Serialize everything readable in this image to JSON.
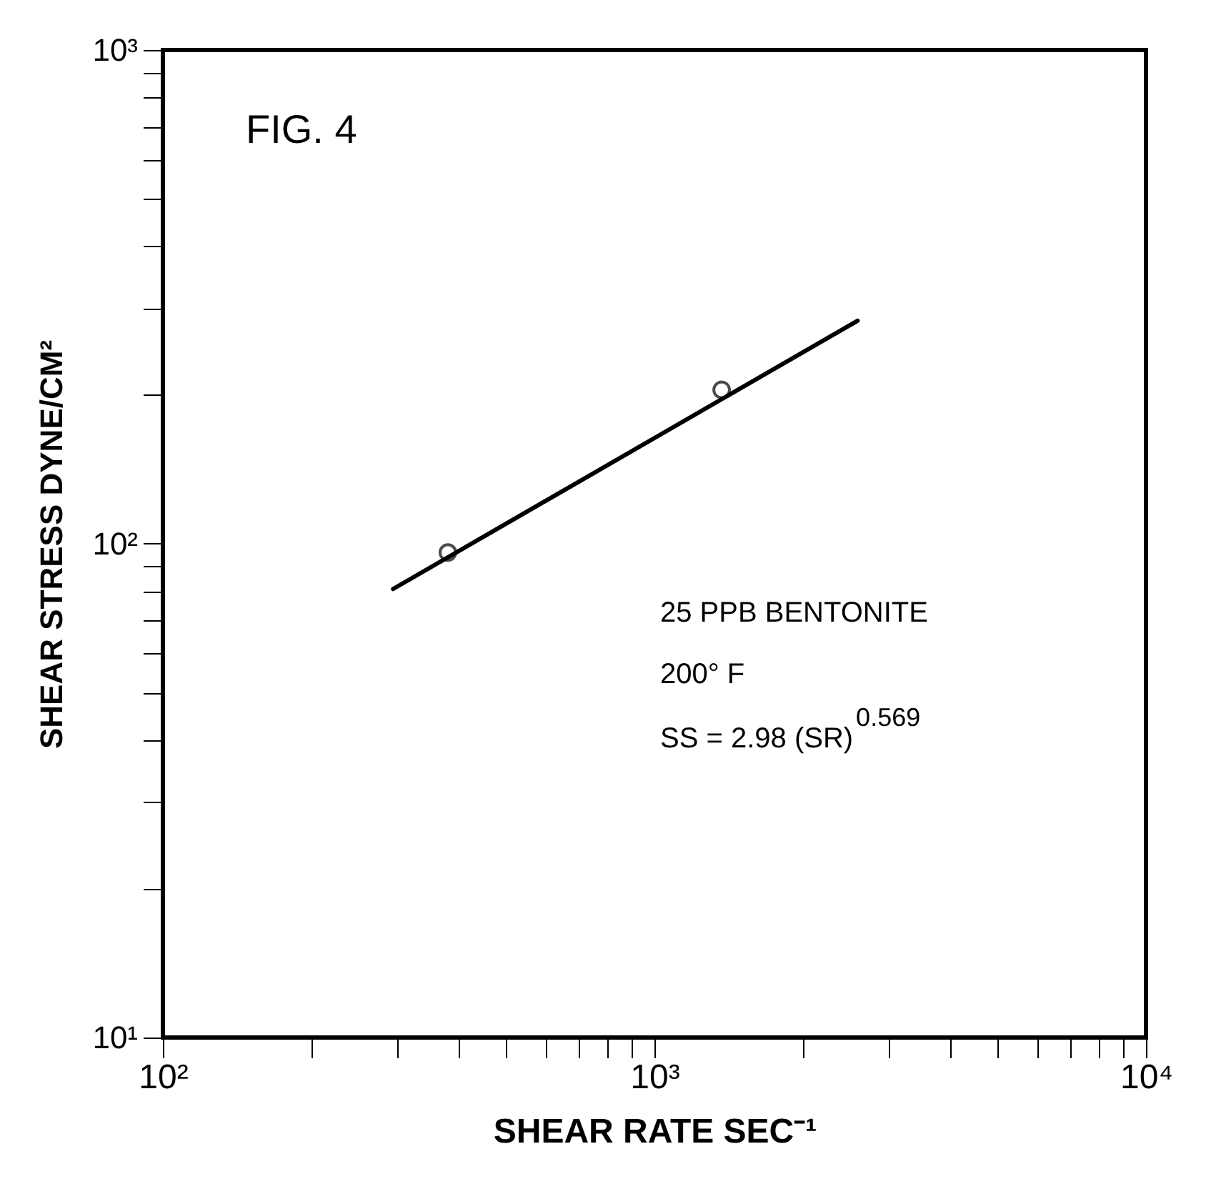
{
  "chart_data": {
    "type": "line",
    "title": "FIG. 4",
    "xlabel": "SHEAR RATE   SEC⁻¹",
    "ylabel": "SHEAR STRESS   DYNE/CM²",
    "annotations": [
      "25 PPB  BENTONITE",
      "200° F",
      "SS = 2.98 (SR)$^{0.569}$"
    ],
    "log": "xy",
    "grid": false,
    "xlim": [
      100,
      10000
    ],
    "ylim": [
      10,
      1000
    ],
    "xticks": [
      {
        "value": 100,
        "label": "10²"
      },
      {
        "value": 200,
        "label": null
      },
      {
        "value": 300,
        "label": null
      },
      {
        "value": 400,
        "label": null
      },
      {
        "value": 500,
        "label": null
      },
      {
        "value": 600,
        "label": null
      },
      {
        "value": 700,
        "label": null
      },
      {
        "value": 800,
        "label": null
      },
      {
        "value": 900,
        "label": null
      },
      {
        "value": 1000,
        "label": "10³"
      },
      {
        "value": 2000,
        "label": null
      },
      {
        "value": 3000,
        "label": null
      },
      {
        "value": 4000,
        "label": null
      },
      {
        "value": 5000,
        "label": null
      },
      {
        "value": 6000,
        "label": null
      },
      {
        "value": 7000,
        "label": null
      },
      {
        "value": 8000,
        "label": null
      },
      {
        "value": 9000,
        "label": null
      },
      {
        "value": 10000,
        "label": "10⁴"
      }
    ],
    "yticks": [
      {
        "value": 10,
        "label": "10¹"
      },
      {
        "value": 20,
        "label": null
      },
      {
        "value": 30,
        "label": null
      },
      {
        "value": 40,
        "label": null
      },
      {
        "value": 50,
        "label": null
      },
      {
        "value": 60,
        "label": null
      },
      {
        "value": 70,
        "label": null
      },
      {
        "value": 80,
        "label": null
      },
      {
        "value": 90,
        "label": null
      },
      {
        "value": 100,
        "label": "10²"
      },
      {
        "value": 200,
        "label": null
      },
      {
        "value": 300,
        "label": null
      },
      {
        "value": 400,
        "label": null
      },
      {
        "value": 500,
        "label": null
      },
      {
        "value": 600,
        "label": null
      },
      {
        "value": 700,
        "label": null
      },
      {
        "value": 800,
        "label": null
      },
      {
        "value": 900,
        "label": null
      },
      {
        "value": 1000,
        "label": "10³"
      }
    ],
    "series": [
      {
        "x": [
          294,
          2590
        ],
        "values": [
          81,
          283
        ],
        "color": "#000000",
        "marker": "none"
      },
      {
        "type": "scatter",
        "x": [
          380,
          1370
        ],
        "values": [
          96,
          205
        ],
        "color": "#000000",
        "marker": "circle"
      }
    ]
  }
}
